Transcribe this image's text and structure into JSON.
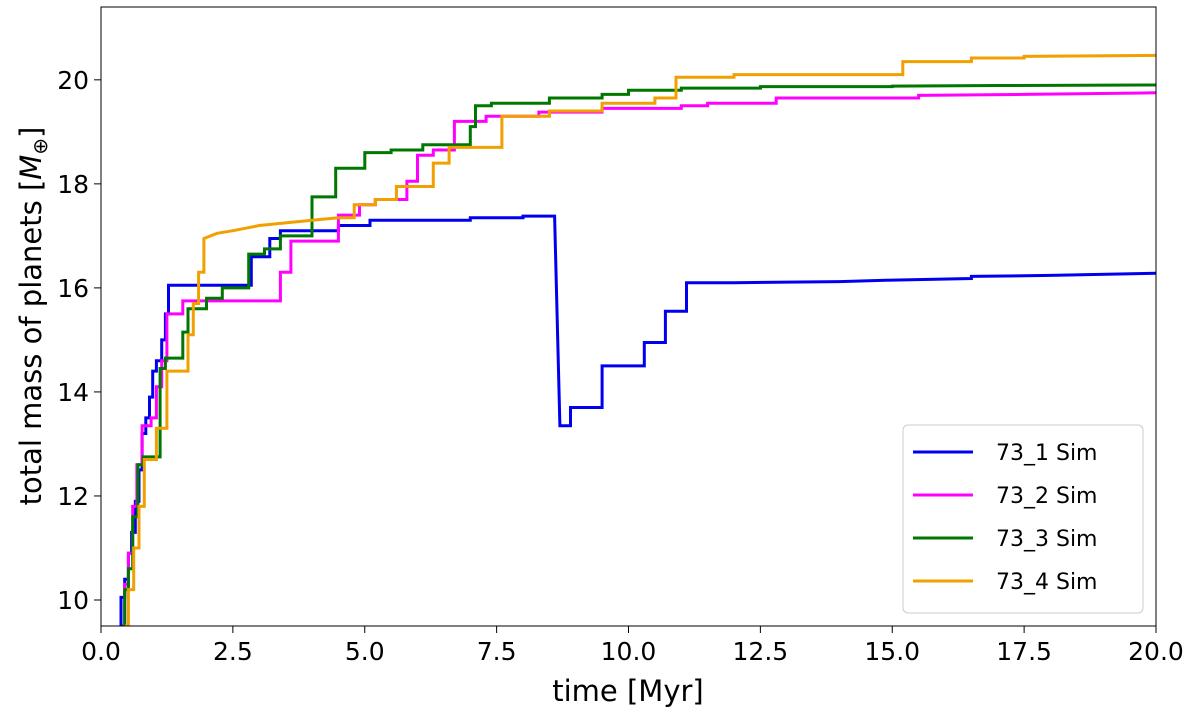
{
  "chart_data": {
    "type": "line",
    "title": "",
    "xlabel": "time [Myr]",
    "ylabel": "total mass of planets [M⊕]",
    "xlim": [
      0,
      20
    ],
    "ylim": [
      9.5,
      21.4
    ],
    "xticks": [
      "0.0",
      "2.5",
      "5.0",
      "7.5",
      "10.0",
      "12.5",
      "15.0",
      "17.5",
      "20.0"
    ],
    "yticks": [
      "10",
      "12",
      "14",
      "16",
      "18",
      "20"
    ],
    "grid": false,
    "legend_position": "lower-right",
    "series": [
      {
        "name": "73_1 Sim",
        "color": "#0000ee",
        "points": [
          [
            0.35,
            9.5
          ],
          [
            0.38,
            9.5
          ],
          [
            0.38,
            10.05
          ],
          [
            0.45,
            10.05
          ],
          [
            0.45,
            10.4
          ],
          [
            0.52,
            10.4
          ],
          [
            0.52,
            10.9
          ],
          [
            0.58,
            10.9
          ],
          [
            0.58,
            11.3
          ],
          [
            0.65,
            11.3
          ],
          [
            0.65,
            11.9
          ],
          [
            0.72,
            11.9
          ],
          [
            0.72,
            12.5
          ],
          [
            0.78,
            12.5
          ],
          [
            0.78,
            13.2
          ],
          [
            0.85,
            13.2
          ],
          [
            0.85,
            13.5
          ],
          [
            0.92,
            13.5
          ],
          [
            0.92,
            13.9
          ],
          [
            0.98,
            13.9
          ],
          [
            0.98,
            14.4
          ],
          [
            1.05,
            14.4
          ],
          [
            1.05,
            14.6
          ],
          [
            1.15,
            14.6
          ],
          [
            1.15,
            15.0
          ],
          [
            1.22,
            15.0
          ],
          [
            1.22,
            15.5
          ],
          [
            1.28,
            15.5
          ],
          [
            1.28,
            16.05
          ],
          [
            2.85,
            16.05
          ],
          [
            2.85,
            16.6
          ],
          [
            3.2,
            16.6
          ],
          [
            3.2,
            16.95
          ],
          [
            3.4,
            16.95
          ],
          [
            3.4,
            17.1
          ],
          [
            4.5,
            17.1
          ],
          [
            4.5,
            17.2
          ],
          [
            5.1,
            17.2
          ],
          [
            5.1,
            17.3
          ],
          [
            7.0,
            17.3
          ],
          [
            7.0,
            17.35
          ],
          [
            8.0,
            17.35
          ],
          [
            8.0,
            17.38
          ],
          [
            8.6,
            17.38
          ],
          [
            8.7,
            13.35
          ],
          [
            8.9,
            13.35
          ],
          [
            8.9,
            13.7
          ],
          [
            9.5,
            13.7
          ],
          [
            9.5,
            14.5
          ],
          [
            10.3,
            14.5
          ],
          [
            10.3,
            14.95
          ],
          [
            10.7,
            14.95
          ],
          [
            10.7,
            15.55
          ],
          [
            11.1,
            15.55
          ],
          [
            11.1,
            16.1
          ],
          [
            12.0,
            16.1
          ],
          [
            14.0,
            16.12
          ],
          [
            15.0,
            16.15
          ],
          [
            16.5,
            16.18
          ],
          [
            16.5,
            16.22
          ],
          [
            18.0,
            16.24
          ],
          [
            20.0,
            16.28
          ]
        ]
      },
      {
        "name": "73_2 Sim",
        "color": "#ff00ff",
        "points": [
          [
            0.4,
            9.5
          ],
          [
            0.45,
            9.5
          ],
          [
            0.45,
            10.3
          ],
          [
            0.52,
            10.3
          ],
          [
            0.52,
            10.9
          ],
          [
            0.6,
            10.9
          ],
          [
            0.6,
            11.8
          ],
          [
            0.68,
            11.8
          ],
          [
            0.68,
            12.6
          ],
          [
            0.78,
            12.6
          ],
          [
            0.78,
            13.35
          ],
          [
            0.95,
            13.35
          ],
          [
            0.95,
            13.5
          ],
          [
            1.05,
            13.5
          ],
          [
            1.05,
            14.1
          ],
          [
            1.15,
            14.1
          ],
          [
            1.15,
            14.6
          ],
          [
            1.25,
            14.6
          ],
          [
            1.25,
            15.5
          ],
          [
            1.55,
            15.5
          ],
          [
            1.55,
            15.75
          ],
          [
            3.4,
            15.75
          ],
          [
            3.4,
            16.3
          ],
          [
            3.6,
            16.3
          ],
          [
            3.6,
            16.9
          ],
          [
            4.5,
            16.9
          ],
          [
            4.5,
            17.4
          ],
          [
            4.9,
            17.4
          ],
          [
            4.9,
            17.6
          ],
          [
            5.2,
            17.6
          ],
          [
            5.2,
            17.7
          ],
          [
            5.8,
            17.7
          ],
          [
            5.8,
            18.05
          ],
          [
            6.0,
            18.05
          ],
          [
            6.0,
            18.55
          ],
          [
            6.3,
            18.55
          ],
          [
            6.3,
            18.65
          ],
          [
            6.7,
            18.65
          ],
          [
            6.7,
            19.2
          ],
          [
            7.3,
            19.2
          ],
          [
            7.3,
            19.3
          ],
          [
            8.3,
            19.3
          ],
          [
            8.3,
            19.38
          ],
          [
            9.5,
            19.38
          ],
          [
            9.5,
            19.45
          ],
          [
            11.0,
            19.45
          ],
          [
            11.0,
            19.5
          ],
          [
            11.5,
            19.5
          ],
          [
            11.5,
            19.55
          ],
          [
            12.8,
            19.55
          ],
          [
            12.8,
            19.65
          ],
          [
            15.5,
            19.65
          ],
          [
            15.5,
            19.7
          ],
          [
            17.5,
            19.72
          ],
          [
            20.0,
            19.75
          ]
        ]
      },
      {
        "name": "73_3 Sim",
        "color": "#007700",
        "points": [
          [
            0.4,
            9.5
          ],
          [
            0.45,
            9.5
          ],
          [
            0.45,
            10.2
          ],
          [
            0.52,
            10.2
          ],
          [
            0.52,
            10.6
          ],
          [
            0.6,
            10.6
          ],
          [
            0.6,
            11.6
          ],
          [
            0.7,
            11.6
          ],
          [
            0.7,
            12.6
          ],
          [
            0.8,
            12.6
          ],
          [
            0.8,
            12.75
          ],
          [
            1.12,
            12.75
          ],
          [
            1.12,
            14.45
          ],
          [
            1.22,
            14.45
          ],
          [
            1.22,
            14.65
          ],
          [
            1.55,
            14.65
          ],
          [
            1.55,
            15.15
          ],
          [
            1.65,
            15.15
          ],
          [
            1.65,
            15.6
          ],
          [
            2.0,
            15.6
          ],
          [
            2.0,
            15.8
          ],
          [
            2.3,
            15.8
          ],
          [
            2.3,
            16.0
          ],
          [
            2.8,
            16.0
          ],
          [
            2.8,
            16.65
          ],
          [
            3.1,
            16.65
          ],
          [
            3.1,
            16.75
          ],
          [
            3.4,
            16.75
          ],
          [
            3.4,
            17.0
          ],
          [
            4.0,
            17.0
          ],
          [
            4.0,
            17.75
          ],
          [
            4.45,
            17.75
          ],
          [
            4.45,
            18.3
          ],
          [
            5.0,
            18.3
          ],
          [
            5.0,
            18.6
          ],
          [
            5.5,
            18.6
          ],
          [
            5.5,
            18.65
          ],
          [
            6.1,
            18.65
          ],
          [
            6.1,
            18.75
          ],
          [
            7.0,
            18.75
          ],
          [
            7.0,
            19.1
          ],
          [
            7.1,
            19.1
          ],
          [
            7.1,
            19.5
          ],
          [
            7.4,
            19.5
          ],
          [
            7.4,
            19.55
          ],
          [
            8.5,
            19.55
          ],
          [
            8.5,
            19.65
          ],
          [
            9.5,
            19.65
          ],
          [
            9.5,
            19.72
          ],
          [
            10.0,
            19.72
          ],
          [
            10.0,
            19.8
          ],
          [
            11.0,
            19.8
          ],
          [
            11.0,
            19.84
          ],
          [
            12.5,
            19.84
          ],
          [
            12.5,
            19.87
          ],
          [
            15.0,
            19.87
          ],
          [
            15.0,
            19.88
          ],
          [
            17.0,
            19.89
          ],
          [
            20.0,
            19.9
          ]
        ]
      },
      {
        "name": "73_4 Sim",
        "color": "#f0a000",
        "points": [
          [
            0.45,
            9.5
          ],
          [
            0.52,
            9.5
          ],
          [
            0.52,
            10.2
          ],
          [
            0.62,
            10.2
          ],
          [
            0.62,
            11.0
          ],
          [
            0.72,
            11.0
          ],
          [
            0.72,
            11.8
          ],
          [
            0.82,
            11.8
          ],
          [
            0.82,
            12.7
          ],
          [
            1.05,
            12.7
          ],
          [
            1.05,
            13.3
          ],
          [
            1.25,
            13.3
          ],
          [
            1.25,
            14.4
          ],
          [
            1.65,
            14.4
          ],
          [
            1.65,
            15.1
          ],
          [
            1.75,
            15.1
          ],
          [
            1.75,
            15.7
          ],
          [
            1.85,
            15.7
          ],
          [
            1.85,
            16.3
          ],
          [
            1.95,
            16.3
          ],
          [
            1.95,
            16.95
          ],
          [
            2.2,
            17.05
          ],
          [
            2.5,
            17.1
          ],
          [
            3.0,
            17.2
          ],
          [
            3.5,
            17.25
          ],
          [
            4.0,
            17.3
          ],
          [
            4.5,
            17.35
          ],
          [
            4.8,
            17.35
          ],
          [
            4.8,
            17.6
          ],
          [
            5.2,
            17.6
          ],
          [
            5.2,
            17.7
          ],
          [
            5.6,
            17.7
          ],
          [
            5.6,
            17.95
          ],
          [
            6.3,
            17.95
          ],
          [
            6.3,
            18.4
          ],
          [
            6.6,
            18.4
          ],
          [
            6.6,
            18.7
          ],
          [
            7.6,
            18.7
          ],
          [
            7.6,
            19.3
          ],
          [
            8.5,
            19.3
          ],
          [
            8.5,
            19.4
          ],
          [
            9.5,
            19.4
          ],
          [
            9.5,
            19.55
          ],
          [
            10.5,
            19.55
          ],
          [
            10.5,
            19.65
          ],
          [
            10.9,
            19.65
          ],
          [
            10.9,
            20.05
          ],
          [
            12.0,
            20.05
          ],
          [
            12.0,
            20.1
          ],
          [
            15.2,
            20.1
          ],
          [
            15.2,
            20.35
          ],
          [
            16.5,
            20.35
          ],
          [
            16.5,
            20.42
          ],
          [
            17.5,
            20.42
          ],
          [
            17.5,
            20.45
          ],
          [
            20.0,
            20.47
          ]
        ]
      }
    ]
  }
}
